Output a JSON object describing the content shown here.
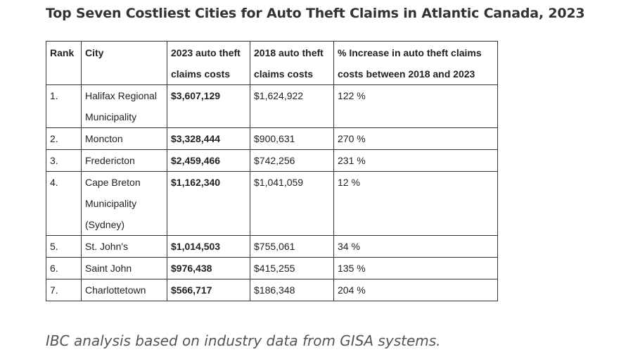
{
  "title": "Top Seven Costliest Cities for Auto Theft Claims in Atlantic Canada, 2023",
  "table": {
    "headers": {
      "rank": "Rank",
      "city": "City",
      "costs_2023": "2023 auto theft claims costs",
      "costs_2018": "2018 auto theft claims costs",
      "increase": "% Increase in auto theft claims costs between 2018 and 2023"
    },
    "rows": [
      {
        "rank": "1.",
        "city": "Halifax Regional Municipality",
        "costs_2023": "$3,607,129",
        "costs_2018": "$1,624,922",
        "increase": "122 %"
      },
      {
        "rank": "2.",
        "city": "Moncton",
        "costs_2023": "$3,328,444",
        "costs_2018": "$900,631",
        "increase": "270 %"
      },
      {
        "rank": "3.",
        "city": "Fredericton",
        "costs_2023": "$2,459,466",
        "costs_2018": "$742,256",
        "increase": "231 %"
      },
      {
        "rank": "4.",
        "city": "Cape Breton Municipality (Sydney)",
        "costs_2023": "$1,162,340",
        "costs_2018": "$1,041,059",
        "increase": "12 %"
      },
      {
        "rank": "5.",
        "city": "St. John's",
        "costs_2023": "$1,014,503",
        "costs_2018": "$755,061",
        "increase": "34 %"
      },
      {
        "rank": "6.",
        "city": "Saint John",
        "costs_2023": "$976,438",
        "costs_2018": "$415,255",
        "increase": "135 %"
      },
      {
        "rank": "7.",
        "city": "Charlottetown",
        "costs_2023": "$566,717",
        "costs_2018": "$186,348",
        "increase": "204 %"
      }
    ]
  },
  "footer": "IBC analysis based on industry data from GISA systems."
}
